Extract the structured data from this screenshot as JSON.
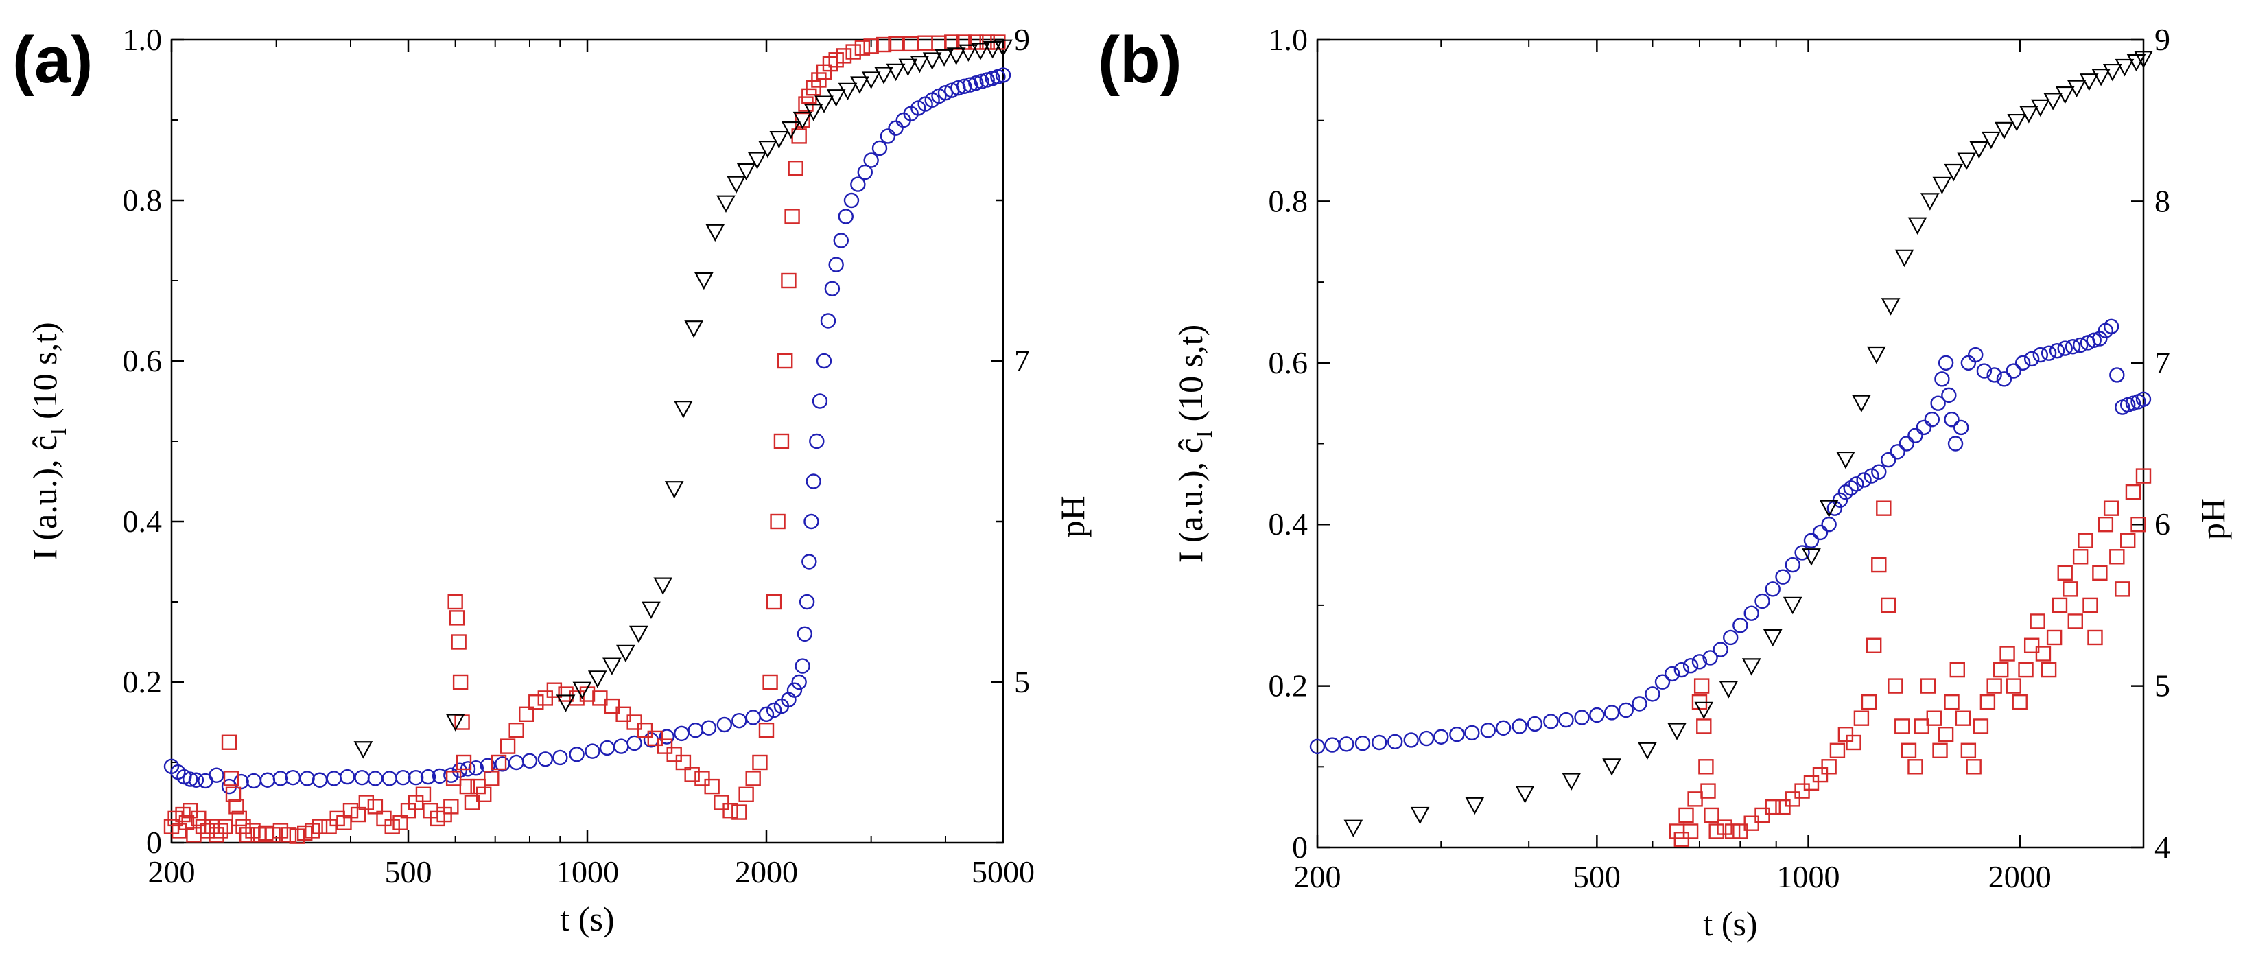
{
  "colors": {
    "red": "#d42a2a",
    "blue": "#1f1fb4",
    "black": "#000000"
  },
  "chart_data": [
    {
      "panel": "(a)",
      "type": "scatter",
      "x_scale": "log",
      "xlabel": "t (s)",
      "ylabel": "I (a.u.), ĉ_I (10 s,t)",
      "y2label": "pH",
      "xlim": [
        200,
        5000
      ],
      "ylim": [
        0,
        1.0
      ],
      "y2lim": [
        4,
        9
      ],
      "x_ticks": [
        200,
        500,
        1000,
        2000,
        5000
      ],
      "x_tick_labels": [
        "200",
        "500",
        "1000",
        "2000",
        "5000"
      ],
      "y_ticks": [
        0,
        0.2,
        0.4,
        0.6,
        0.8,
        1.0
      ],
      "y_tick_labels": [
        "0",
        "0.2",
        "0.4",
        "0.6",
        "0.8",
        "1.0"
      ],
      "y2_ticks": [
        5,
        7,
        9
      ],
      "y2_tick_labels": [
        "5",
        "7",
        "9"
      ],
      "grid": false,
      "series": [
        {
          "marker": "circle",
          "color": "#1f1fb4",
          "axis": "left",
          "x": [
            200,
            205,
            210,
            215,
            220,
            228,
            238,
            250,
            262,
            275,
            290,
            305,
            320,
            338,
            355,
            375,
            395,
            418,
            440,
            465,
            490,
            515,
            540,
            565,
            590,
            610,
            630,
            650,
            680,
            720,
            760,
            800,
            850,
            900,
            960,
            1020,
            1080,
            1140,
            1200,
            1280,
            1360,
            1440,
            1520,
            1600,
            1700,
            1800,
            1900,
            2000,
            2060,
            2120,
            2180,
            2230,
            2270,
            2300,
            2320,
            2340,
            2360,
            2380,
            2400,
            2430,
            2460,
            2500,
            2540,
            2580,
            2620,
            2670,
            2720,
            2780,
            2850,
            2930,
            3000,
            3100,
            3200,
            3300,
            3400,
            3500,
            3600,
            3700,
            3800,
            3900,
            4000,
            4100,
            4200,
            4300,
            4400,
            4500,
            4600,
            4700,
            4800,
            4900,
            5000
          ],
          "y": [
            0.095,
            0.088,
            0.082,
            0.079,
            0.078,
            0.077,
            0.084,
            0.07,
            0.076,
            0.077,
            0.078,
            0.08,
            0.081,
            0.08,
            0.078,
            0.08,
            0.082,
            0.081,
            0.08,
            0.08,
            0.081,
            0.081,
            0.082,
            0.083,
            0.084,
            0.09,
            0.092,
            0.093,
            0.096,
            0.098,
            0.1,
            0.102,
            0.104,
            0.106,
            0.11,
            0.114,
            0.118,
            0.12,
            0.124,
            0.128,
            0.132,
            0.136,
            0.14,
            0.143,
            0.147,
            0.152,
            0.156,
            0.16,
            0.165,
            0.17,
            0.178,
            0.19,
            0.2,
            0.22,
            0.26,
            0.3,
            0.35,
            0.4,
            0.45,
            0.5,
            0.55,
            0.6,
            0.65,
            0.69,
            0.72,
            0.75,
            0.78,
            0.8,
            0.82,
            0.835,
            0.85,
            0.865,
            0.88,
            0.89,
            0.9,
            0.908,
            0.915,
            0.92,
            0.925,
            0.93,
            0.934,
            0.937,
            0.94,
            0.942,
            0.944,
            0.946,
            0.948,
            0.95,
            0.952,
            0.954,
            0.956
          ]
        },
        {
          "marker": "square",
          "color": "#d42a2a",
          "axis": "left",
          "x": [
            200,
            203,
            206,
            209,
            212,
            215,
            218,
            222,
            226,
            230,
            234,
            238,
            242,
            246,
            250,
            252,
            254,
            257,
            260,
            264,
            268,
            274,
            280,
            288,
            296,
            305,
            315,
            325,
            335,
            345,
            355,
            368,
            380,
            390,
            400,
            412,
            425,
            440,
            455,
            470,
            485,
            500,
            515,
            530,
            545,
            560,
            575,
            590,
            596,
            600,
            604,
            608,
            612,
            616,
            620,
            628,
            640,
            655,
            670,
            690,
            710,
            735,
            760,
            790,
            820,
            850,
            880,
            920,
            960,
            1000,
            1050,
            1100,
            1150,
            1200,
            1250,
            1300,
            1350,
            1400,
            1450,
            1500,
            1560,
            1620,
            1680,
            1740,
            1800,
            1850,
            1900,
            1950,
            2000,
            2030,
            2060,
            2090,
            2120,
            2150,
            2180,
            2210,
            2240,
            2270,
            2300,
            2330,
            2360,
            2400,
            2450,
            2500,
            2560,
            2620,
            2700,
            2800,
            2900,
            3000,
            3150,
            3300,
            3500,
            3700,
            3900,
            4100,
            4300,
            4500,
            4700,
            4900
          ],
          "y": [
            0.02,
            0.03,
            0.015,
            0.035,
            0.025,
            0.04,
            0.01,
            0.03,
            0.02,
            0.015,
            0.02,
            0.01,
            0.015,
            0.02,
            0.125,
            0.08,
            0.06,
            0.045,
            0.03,
            0.02,
            0.01,
            0.015,
            0.01,
            0.012,
            0.01,
            0.015,
            0.01,
            0.008,
            0.012,
            0.015,
            0.02,
            0.02,
            0.03,
            0.025,
            0.04,
            0.035,
            0.05,
            0.045,
            0.03,
            0.02,
            0.025,
            0.04,
            0.05,
            0.06,
            0.04,
            0.03,
            0.035,
            0.045,
            0.08,
            0.3,
            0.28,
            0.25,
            0.2,
            0.15,
            0.1,
            0.07,
            0.05,
            0.07,
            0.06,
            0.08,
            0.1,
            0.12,
            0.14,
            0.16,
            0.175,
            0.18,
            0.19,
            0.185,
            0.18,
            0.185,
            0.18,
            0.17,
            0.16,
            0.15,
            0.14,
            0.13,
            0.12,
            0.11,
            0.1,
            0.085,
            0.08,
            0.07,
            0.05,
            0.04,
            0.038,
            0.06,
            0.08,
            0.1,
            0.14,
            0.2,
            0.3,
            0.4,
            0.5,
            0.6,
            0.7,
            0.78,
            0.84,
            0.88,
            0.9,
            0.92,
            0.93,
            0.94,
            0.95,
            0.96,
            0.97,
            0.975,
            0.98,
            0.985,
            0.99,
            0.992,
            0.994,
            0.995,
            0.995,
            0.996,
            0.996,
            0.997,
            0.997,
            0.997,
            0.997,
            0.997
          ]
        },
        {
          "marker": "triangle-down",
          "color": "#000000",
          "axis": "right",
          "x": [
            420,
            600,
            920,
            980,
            1040,
            1100,
            1160,
            1220,
            1280,
            1340,
            1400,
            1450,
            1510,
            1570,
            1640,
            1710,
            1780,
            1850,
            1930,
            2010,
            2100,
            2200,
            2300,
            2400,
            2500,
            2620,
            2740,
            2870,
            3000,
            3150,
            3300,
            3460,
            3620,
            3800,
            3980,
            4170,
            4370,
            4580,
            4800,
            5000
          ],
          "y": [
            4.58,
            4.75,
            4.87,
            4.95,
            5.02,
            5.1,
            5.18,
            5.3,
            5.45,
            5.6,
            6.2,
            6.7,
            7.2,
            7.5,
            7.8,
            7.98,
            8.1,
            8.18,
            8.25,
            8.32,
            8.38,
            8.44,
            8.5,
            8.55,
            8.6,
            8.64,
            8.68,
            8.72,
            8.75,
            8.78,
            8.8,
            8.83,
            8.85,
            8.87,
            8.89,
            8.9,
            8.92,
            8.93,
            8.94,
            8.95
          ]
        }
      ]
    },
    {
      "panel": "(b)",
      "type": "scatter",
      "x_scale": "log",
      "xlabel": "t (s)",
      "ylabel": "I (a.u.), ĉ_I (10 s,t)",
      "y2label": "pH",
      "xlim": [
        200,
        3000
      ],
      "ylim": [
        0,
        1.0
      ],
      "y2lim": [
        4,
        9
      ],
      "x_ticks": [
        200,
        500,
        1000,
        2000
      ],
      "x_tick_labels": [
        "200",
        "500",
        "1000",
        "2000"
      ],
      "y_ticks": [
        0,
        0.2,
        0.4,
        0.6,
        0.8,
        1.0
      ],
      "y_tick_labels": [
        "0",
        "0.2",
        "0.4",
        "0.6",
        "0.8",
        "1.0"
      ],
      "y2_ticks": [
        4,
        5,
        6,
        7,
        8,
        9
      ],
      "y2_tick_labels": [
        "4",
        "5",
        "6",
        "7",
        "8",
        "9"
      ],
      "grid": false,
      "series": [
        {
          "marker": "circle",
          "color": "#1f1fb4",
          "axis": "left",
          "x": [
            200,
            210,
            220,
            232,
            245,
            258,
            272,
            286,
            300,
            316,
            332,
            350,
            368,
            388,
            408,
            430,
            452,
            476,
            500,
            525,
            550,
            575,
            600,
            620,
            640,
            660,
            680,
            700,
            725,
            750,
            775,
            800,
            830,
            860,
            890,
            920,
            950,
            980,
            1010,
            1040,
            1070,
            1090,
            1110,
            1130,
            1150,
            1170,
            1200,
            1230,
            1260,
            1300,
            1340,
            1380,
            1420,
            1460,
            1500,
            1530,
            1550,
            1570,
            1585,
            1600,
            1620,
            1650,
            1690,
            1730,
            1780,
            1840,
            1900,
            1960,
            2020,
            2080,
            2140,
            2200,
            2260,
            2320,
            2380,
            2440,
            2500,
            2550,
            2600,
            2650,
            2700,
            2750,
            2800,
            2850,
            2900,
            2950,
            3000
          ],
          "y": [
            0.125,
            0.127,
            0.128,
            0.129,
            0.13,
            0.131,
            0.133,
            0.135,
            0.137,
            0.14,
            0.142,
            0.145,
            0.148,
            0.15,
            0.153,
            0.156,
            0.158,
            0.161,
            0.164,
            0.167,
            0.17,
            0.178,
            0.19,
            0.205,
            0.215,
            0.22,
            0.225,
            0.23,
            0.235,
            0.245,
            0.26,
            0.275,
            0.29,
            0.305,
            0.32,
            0.335,
            0.35,
            0.365,
            0.38,
            0.39,
            0.4,
            0.42,
            0.43,
            0.44,
            0.445,
            0.45,
            0.455,
            0.46,
            0.465,
            0.48,
            0.49,
            0.5,
            0.51,
            0.52,
            0.53,
            0.55,
            0.58,
            0.6,
            0.56,
            0.53,
            0.5,
            0.52,
            0.6,
            0.61,
            0.59,
            0.585,
            0.58,
            0.59,
            0.6,
            0.605,
            0.61,
            0.612,
            0.615,
            0.618,
            0.62,
            0.622,
            0.625,
            0.628,
            0.63,
            0.64,
            0.645,
            0.585,
            0.545,
            0.548,
            0.55,
            0.552,
            0.555
          ]
        },
        {
          "marker": "square",
          "color": "#d42a2a",
          "axis": "left",
          "x": [
            650,
            660,
            670,
            680,
            690,
            700,
            705,
            710,
            715,
            720,
            728,
            740,
            760,
            780,
            800,
            830,
            860,
            890,
            920,
            950,
            980,
            1010,
            1040,
            1070,
            1100,
            1130,
            1160,
            1190,
            1220,
            1240,
            1260,
            1280,
            1300,
            1330,
            1360,
            1390,
            1420,
            1450,
            1480,
            1510,
            1540,
            1570,
            1600,
            1630,
            1660,
            1690,
            1720,
            1760,
            1800,
            1840,
            1880,
            1920,
            1960,
            2000,
            2040,
            2080,
            2120,
            2160,
            2200,
            2240,
            2280,
            2320,
            2360,
            2400,
            2440,
            2480,
            2520,
            2560,
            2600,
            2650,
            2700,
            2750,
            2800,
            2850,
            2900,
            2950,
            3000
          ],
          "y": [
            0.02,
            0.01,
            0.04,
            0.02,
            0.06,
            0.18,
            0.2,
            0.15,
            0.1,
            0.07,
            0.04,
            0.02,
            0.025,
            0.02,
            0.02,
            0.03,
            0.04,
            0.05,
            0.05,
            0.06,
            0.07,
            0.08,
            0.09,
            0.1,
            0.12,
            0.14,
            0.13,
            0.16,
            0.18,
            0.25,
            0.35,
            0.42,
            0.3,
            0.2,
            0.15,
            0.12,
            0.1,
            0.15,
            0.2,
            0.16,
            0.12,
            0.14,
            0.18,
            0.22,
            0.16,
            0.12,
            0.1,
            0.15,
            0.18,
            0.2,
            0.22,
            0.24,
            0.2,
            0.18,
            0.22,
            0.25,
            0.28,
            0.24,
            0.22,
            0.26,
            0.3,
            0.34,
            0.32,
            0.28,
            0.36,
            0.38,
            0.3,
            0.26,
            0.34,
            0.4,
            0.42,
            0.36,
            0.32,
            0.38,
            0.44,
            0.4,
            0.46
          ]
        },
        {
          "marker": "triangle-down",
          "color": "#000000",
          "axis": "right",
          "x": [
            225,
            280,
            335,
            395,
            460,
            525,
            590,
            650,
            710,
            770,
            830,
            890,
            950,
            1010,
            1070,
            1130,
            1190,
            1250,
            1310,
            1370,
            1430,
            1490,
            1550,
            1610,
            1680,
            1750,
            1820,
            1900,
            1980,
            2060,
            2140,
            2230,
            2320,
            2410,
            2510,
            2610,
            2710,
            2820,
            2930,
            3000
          ],
          "y": [
            4.12,
            4.2,
            4.26,
            4.33,
            4.41,
            4.5,
            4.6,
            4.72,
            4.85,
            4.98,
            5.12,
            5.3,
            5.5,
            5.8,
            6.1,
            6.4,
            6.75,
            7.05,
            7.35,
            7.65,
            7.85,
            8.0,
            8.1,
            8.18,
            8.25,
            8.32,
            8.38,
            8.44,
            8.49,
            8.54,
            8.58,
            8.62,
            8.66,
            8.7,
            8.74,
            8.77,
            8.8,
            8.83,
            8.86,
            8.88
          ]
        }
      ]
    }
  ]
}
